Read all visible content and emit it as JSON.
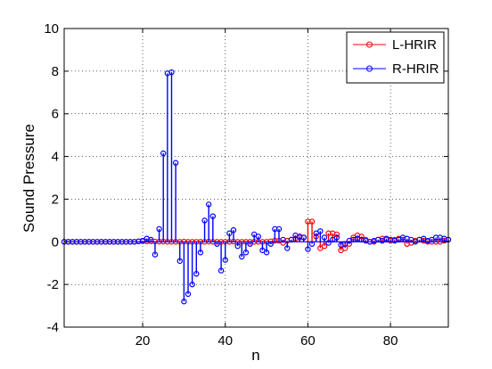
{
  "chart_data": {
    "type": "stem",
    "title": "",
    "xlabel": "n",
    "ylabel": "Sound Pressure",
    "xlim": [
      1,
      94
    ],
    "ylim": [
      -4,
      10
    ],
    "xticks": [
      20,
      40,
      60,
      80
    ],
    "yticks": [
      -4,
      -2,
      0,
      2,
      4,
      6,
      8,
      10
    ],
    "grid": "dotted",
    "legend_position": "top-right",
    "x": [
      1,
      2,
      3,
      4,
      5,
      6,
      7,
      8,
      9,
      10,
      11,
      12,
      13,
      14,
      15,
      16,
      17,
      18,
      19,
      20,
      21,
      22,
      23,
      24,
      25,
      26,
      27,
      28,
      29,
      30,
      31,
      32,
      33,
      34,
      35,
      36,
      37,
      38,
      39,
      40,
      41,
      42,
      43,
      44,
      45,
      46,
      47,
      48,
      49,
      50,
      51,
      52,
      53,
      54,
      55,
      56,
      57,
      58,
      59,
      60,
      61,
      62,
      63,
      64,
      65,
      66,
      67,
      68,
      69,
      70,
      71,
      72,
      73,
      74,
      75,
      76,
      77,
      78,
      79,
      80,
      81,
      82,
      83,
      84,
      85,
      86,
      87,
      88,
      89,
      90,
      91,
      92,
      93,
      94
    ],
    "series": [
      {
        "name": "L-HRIR",
        "color": "#ff0000",
        "values": [
          0,
          0,
          0,
          0,
          0,
          0,
          0,
          0,
          0,
          0,
          0,
          0,
          0,
          0,
          0,
          0,
          0,
          0,
          0.02,
          0.03,
          0.02,
          0.02,
          0.01,
          0.01,
          0.01,
          0,
          0,
          0,
          0,
          0.01,
          0,
          0,
          0,
          0,
          0,
          0.01,
          0,
          0,
          0,
          0,
          0,
          0.01,
          0,
          0,
          0,
          0,
          0,
          0,
          0,
          0,
          0.02,
          0.05,
          0.05,
          -0.05,
          0.05,
          0.1,
          0.15,
          0.2,
          0.2,
          0.95,
          0.95,
          0.25,
          -0.3,
          -0.2,
          0.4,
          0.4,
          0.35,
          -0.4,
          -0.3,
          -0.1,
          0.2,
          0.3,
          0.25,
          0.1,
          0,
          0,
          0.1,
          0.15,
          0.1,
          0.05,
          0.1,
          0.15,
          0.1,
          -0.1,
          -0.05,
          0.05,
          0.1,
          0.05,
          0,
          0,
          0,
          0,
          0.05,
          0.1
        ]
      },
      {
        "name": "R-HRIR",
        "color": "#0000ff",
        "values": [
          0,
          0,
          0,
          0,
          0,
          0,
          0,
          0,
          0,
          0,
          0,
          0,
          0,
          0,
          0,
          0,
          0,
          0,
          0.02,
          0.05,
          0.15,
          0.1,
          -0.6,
          0.6,
          4.15,
          7.9,
          7.95,
          3.7,
          -0.9,
          -2.8,
          -2.45,
          -2.0,
          -1.5,
          -0.5,
          1.0,
          1.75,
          1.2,
          -0.1,
          -1.35,
          -0.85,
          0.4,
          0.55,
          -0.2,
          -0.7,
          -0.5,
          -0.1,
          0.35,
          0.25,
          -0.4,
          -0.5,
          -0.1,
          0.6,
          0.6,
          0.1,
          -0.3,
          0.1,
          0.3,
          0.25,
          0.2,
          -0.35,
          -0.1,
          0.4,
          0.5,
          0.2,
          -0.05,
          0.1,
          0.2,
          -0.15,
          -0.1,
          0.05,
          0.1,
          0.15,
          0.1,
          0.05,
          0,
          0.05,
          0.1,
          0.05,
          0.15,
          0.1,
          0.05,
          0.1,
          0.2,
          0.15,
          0.1,
          0,
          0.1,
          0.15,
          0.05,
          0.1,
          0.2,
          0.2,
          0.15,
          0.1
        ]
      }
    ]
  }
}
